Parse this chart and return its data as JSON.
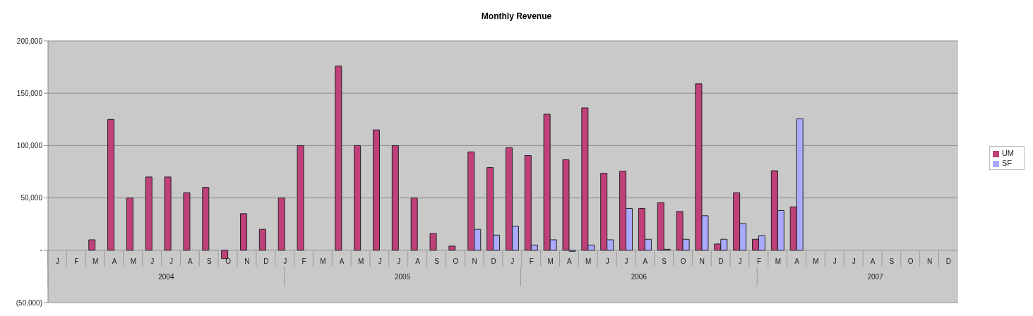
{
  "chart_data": {
    "type": "bar",
    "title": "Monthly Revenue",
    "categories": [
      "J",
      "F",
      "M",
      "A",
      "M",
      "J",
      "J",
      "A",
      "S",
      "O",
      "N",
      "D",
      "J",
      "F",
      "M",
      "A",
      "M",
      "J",
      "J",
      "A",
      "S",
      "O",
      "N",
      "D",
      "J",
      "F",
      "M",
      "A",
      "M",
      "J",
      "J",
      "A",
      "S",
      "O",
      "N",
      "D",
      "J",
      "F",
      "M",
      "A",
      "M",
      "J",
      "J",
      "A",
      "S",
      "O",
      "N",
      "D"
    ],
    "series": [
      {
        "name": "UM",
        "color": "#c0407a",
        "values": [
          null,
          null,
          10000,
          125000,
          50000,
          70000,
          70000,
          55000,
          60000,
          -8000,
          35000,
          20000,
          50000,
          100000,
          null,
          176000,
          100000,
          115000,
          100000,
          50000,
          16000,
          4000,
          94000,
          79000,
          98000,
          90500,
          130000,
          86500,
          136000,
          73500,
          75500,
          40000,
          45500,
          37000,
          159000,
          6000,
          55000,
          10500,
          76000,
          41500,
          null,
          null,
          null,
          null,
          null,
          null,
          null,
          null
        ]
      },
      {
        "name": "SF",
        "color": "#aaaaff",
        "values": [
          null,
          null,
          null,
          null,
          null,
          null,
          null,
          null,
          null,
          null,
          null,
          null,
          null,
          null,
          null,
          null,
          null,
          null,
          null,
          null,
          null,
          null,
          20000,
          14500,
          23000,
          5000,
          10000,
          -1000,
          5000,
          10000,
          40000,
          10500,
          1000,
          10500,
          33000,
          10500,
          25500,
          14000,
          38000,
          125500,
          null,
          null,
          null,
          null,
          null,
          null,
          null,
          null
        ]
      }
    ],
    "annotations": [
      "2004",
      "2005",
      "2006",
      "2007"
    ],
    "ylim": [
      -50000,
      200000
    ],
    "yticks": [
      {
        "value": -50000,
        "label": "(50,000)"
      },
      {
        "value": 0,
        "label": "-"
      },
      {
        "value": 50000,
        "label": "50,000"
      },
      {
        "value": 100000,
        "label": "100,000"
      },
      {
        "value": 150000,
        "label": "150,000"
      },
      {
        "value": 200000,
        "label": "200,000"
      }
    ],
    "grid": "y",
    "legend": "right"
  }
}
